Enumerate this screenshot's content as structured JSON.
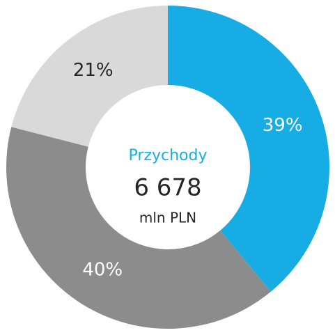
{
  "chart_data": {
    "type": "donut",
    "categories": [
      null,
      null,
      null
    ],
    "values": [
      39,
      40,
      21
    ],
    "value_labels": [
      "39%",
      "40%",
      "21%"
    ],
    "colors": [
      "#17ade4",
      "#8c8c8c",
      "#d9d9d9"
    ],
    "label_colors": [
      "#ffffff",
      "#ffffff",
      "#262626"
    ],
    "center_text": [
      "Przychody",
      "6 678",
      "mln PLN"
    ],
    "center_colors": [
      "#17ade4",
      "#262626",
      "#262626"
    ]
  }
}
